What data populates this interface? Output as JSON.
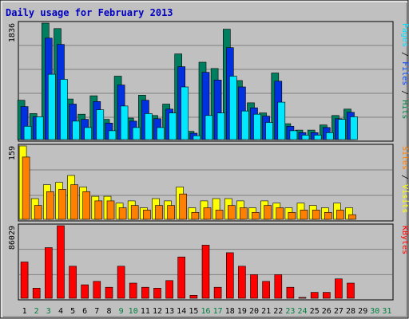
{
  "chart_data": {
    "type": "bar",
    "title": "Daily usage for February 2013",
    "categories": [
      "1",
      "2",
      "3",
      "4",
      "5",
      "6",
      "7",
      "8",
      "9",
      "10",
      "11",
      "12",
      "13",
      "14",
      "15",
      "16",
      "17",
      "18",
      "19",
      "20",
      "21",
      "22",
      "23",
      "24",
      "25",
      "26",
      "27",
      "28",
      "29",
      "30",
      "31"
    ],
    "weekend_days": [
      2,
      3,
      9,
      10,
      16,
      17,
      23,
      24,
      30,
      31
    ],
    "panels": [
      {
        "id": "hits-files-pages",
        "ymax_label": "1836",
        "ylim": [
          0,
          1836
        ],
        "right_labels": [
          {
            "text": "Pages",
            "color": "#00e0ff"
          },
          {
            "text": " / ",
            "color": "#000000"
          },
          {
            "text": "Files",
            "color": "#0040ff"
          },
          {
            "text": " / ",
            "color": "#000000"
          },
          {
            "text": "Hits",
            "color": "#008040"
          }
        ],
        "series": [
          {
            "name": "Hits",
            "color": "#007f60",
            "values": [
              620,
              410,
              1836,
              1750,
              640,
              400,
              690,
              320,
              1000,
              340,
              700,
              380,
              560,
              1350,
              130,
              1220,
              1120,
              1740,
              930,
              580,
              420,
              1050,
              250,
              150,
              150,
              230,
              380,
              480,
              0,
              0,
              0
            ]
          },
          {
            "name": "Files",
            "color": "#0030e0",
            "values": [
              520,
              360,
              1600,
              1500,
              560,
              320,
              600,
              260,
              860,
              290,
              620,
              330,
              480,
              1150,
              100,
              1060,
              940,
              1450,
              830,
              500,
              370,
              920,
              210,
              110,
              110,
              190,
              330,
              430,
              0,
              0,
              0
            ]
          },
          {
            "name": "Pages",
            "color": "#00e8ff",
            "values": [
              210,
              360,
              1030,
              950,
              290,
              190,
              470,
              140,
              530,
              190,
              410,
              190,
              420,
              830,
              60,
              380,
              420,
              1000,
              450,
              400,
              270,
              590,
              140,
              70,
              70,
              110,
              320,
              360,
              0,
              0,
              0
            ]
          }
        ]
      },
      {
        "id": "visits-sites",
        "ymax_label": "159",
        "ylim": [
          0,
          159
        ],
        "right_labels": [
          {
            "text": "Sites",
            "color": "#ff8000"
          },
          {
            "text": " / ",
            "color": "#000000"
          },
          {
            "text": "Visits",
            "color": "#ffff00"
          }
        ],
        "series": [
          {
            "name": "Visits",
            "color": "#ffff00",
            "values": [
              159,
              45,
              75,
              80,
              95,
              70,
              50,
              50,
              35,
              40,
              25,
              45,
              40,
              70,
              25,
              40,
              45,
              45,
              40,
              25,
              40,
              35,
              25,
              35,
              30,
              25,
              35,
              25,
              0,
              0,
              0
            ]
          },
          {
            "name": "Sites",
            "color": "#ff8000",
            "values": [
              135,
              30,
              60,
              65,
              75,
              60,
              40,
              40,
              25,
              30,
              20,
              30,
              30,
              55,
              15,
              25,
              20,
              30,
              25,
              15,
              30,
              25,
              15,
              20,
              20,
              15,
              20,
              10,
              0,
              0,
              0
            ]
          }
        ]
      },
      {
        "id": "kbytes",
        "ymax_label": "86029",
        "ylim": [
          0,
          86029
        ],
        "right_labels": [
          {
            "text": "KBytes",
            "color": "#ff0000"
          }
        ],
        "series": [
          {
            "name": "KBytes",
            "color": "#ff0000",
            "values": [
              43000,
              12000,
              60000,
              86029,
              38000,
              16000,
              20000,
              13000,
              38000,
              18000,
              13000,
              12000,
              21000,
              49000,
              3500,
              63000,
              13000,
              54000,
              38000,
              28000,
              20000,
              28000,
              13000,
              1000,
              7000,
              7000,
              23000,
              18000,
              0,
              0,
              0
            ]
          }
        ]
      }
    ]
  }
}
